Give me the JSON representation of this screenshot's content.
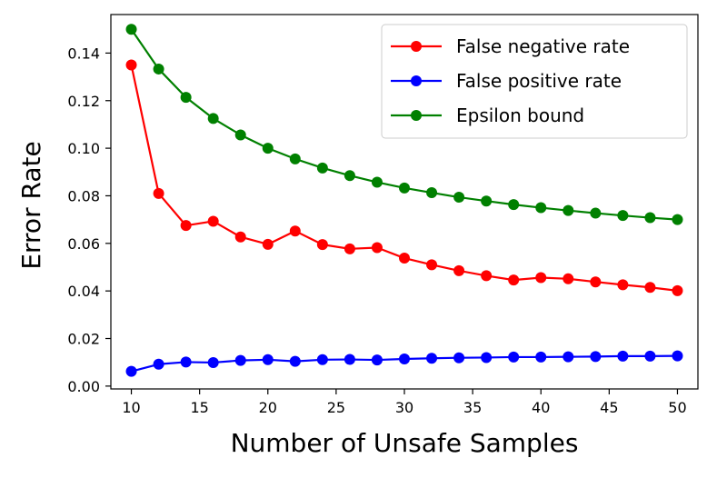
{
  "chart_data": {
    "type": "line",
    "xlabel": "Number of Unsafe Samples",
    "ylabel": "Error Rate",
    "xlim": [
      8.5,
      51.5
    ],
    "ylim": [
      -0.0012,
      0.1562
    ],
    "xticks": [
      10,
      15,
      20,
      25,
      30,
      35,
      40,
      45,
      50
    ],
    "yticks": [
      0.0,
      0.02,
      0.04,
      0.06,
      0.08,
      0.1,
      0.12,
      0.14
    ],
    "ytick_labels": [
      "0.00",
      "0.02",
      "0.04",
      "0.06",
      "0.08",
      "0.10",
      "0.12",
      "0.14"
    ],
    "grid": false,
    "legend_position": "upper right",
    "x": [
      10,
      12,
      14,
      16,
      18,
      20,
      22,
      24,
      26,
      28,
      30,
      32,
      34,
      36,
      38,
      40,
      42,
      44,
      46,
      48,
      50
    ],
    "series": [
      {
        "name": "False negative rate",
        "color": "#ff0000",
        "values": [
          0.135,
          0.081,
          0.0675,
          0.0693,
          0.0627,
          0.0596,
          0.0652,
          0.0595,
          0.0577,
          0.0582,
          0.0538,
          0.051,
          0.0485,
          0.0464,
          0.0446,
          0.0456,
          0.0451,
          0.0438,
          0.0426,
          0.0415,
          0.0401
        ]
      },
      {
        "name": "False positive rate",
        "color": "#0000ff",
        "values": [
          0.0062,
          0.0092,
          0.0101,
          0.0099,
          0.0108,
          0.0111,
          0.0104,
          0.0111,
          0.0112,
          0.011,
          0.0114,
          0.0117,
          0.0119,
          0.012,
          0.0122,
          0.0122,
          0.0123,
          0.0124,
          0.0126,
          0.0126,
          0.0127
        ]
      },
      {
        "name": "Epsilon bound",
        "color": "#008000",
        "values": [
          0.15,
          0.1333,
          0.1214,
          0.1125,
          0.1056,
          0.1,
          0.0955,
          0.0917,
          0.0885,
          0.0857,
          0.0833,
          0.0813,
          0.0794,
          0.0778,
          0.0763,
          0.075,
          0.0738,
          0.0727,
          0.0717,
          0.0708,
          0.07
        ]
      }
    ]
  }
}
